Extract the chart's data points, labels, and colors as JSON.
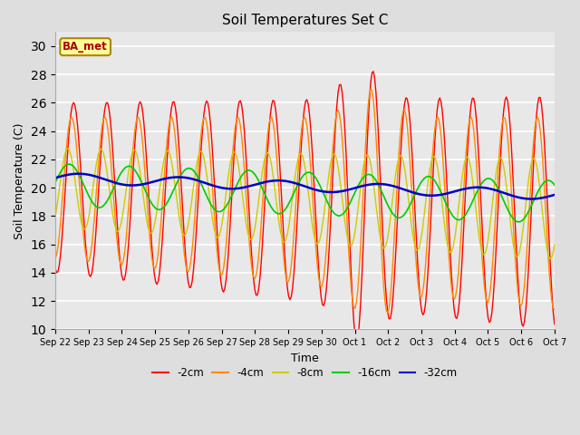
{
  "title": "Soil Temperatures Set C",
  "xlabel": "Time",
  "ylabel": "Soil Temperature (C)",
  "ylim": [
    10,
    31
  ],
  "yticks": [
    10,
    12,
    14,
    16,
    18,
    20,
    22,
    24,
    26,
    28,
    30
  ],
  "bg_color": "#dedede",
  "plot_bg_color": "#e8e8e8",
  "line_colors": {
    "-2cm": "#ff0000",
    "-4cm": "#ff8800",
    "-8cm": "#cccc00",
    "-16cm": "#00cc00",
    "-32cm": "#0000cc"
  },
  "legend_label": "BA_met",
  "legend_bg": "#ffff99",
  "legend_border": "#aa8800"
}
